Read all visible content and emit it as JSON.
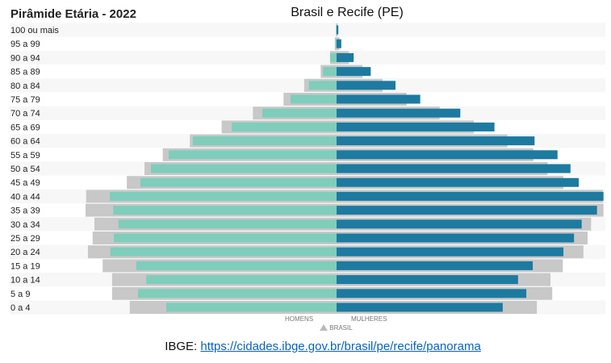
{
  "chart_data": {
    "type": "bar",
    "orientation": "horizontal-population-pyramid",
    "title": "Pirâmide Etária - 2022",
    "subtitle": "Brasil e Recife (PE)",
    "categories": [
      "100 ou mais",
      "95 a 99",
      "90 a 94",
      "85 a 89",
      "80 a 84",
      "75 a 79",
      "70 a 74",
      "65 a 69",
      "60 a 64",
      "55 a 59",
      "50 a 54",
      "45 a 49",
      "40 a 44",
      "35 a 39",
      "30 a 34",
      "25 a 29",
      "20 a 24",
      "15 a 19",
      "10 a 14",
      "5 a 9",
      "0 a 4"
    ],
    "series": [
      {
        "name": "HOMENS",
        "side": "left",
        "color": "#7fcdbb",
        "values": [
          0.01,
          0.02,
          0.11,
          0.23,
          0.47,
          0.78,
          1.26,
          1.78,
          2.44,
          2.85,
          3.15,
          3.33,
          3.85,
          3.79,
          3.7,
          3.78,
          3.84,
          3.4,
          3.23,
          3.37,
          2.89
        ]
      },
      {
        "name": "MULHERES",
        "side": "right",
        "color": "#1d7aa0",
        "values": [
          0.03,
          0.08,
          0.29,
          0.58,
          1.0,
          1.42,
          2.1,
          2.68,
          3.36,
          3.75,
          3.97,
          4.11,
          4.53,
          4.42,
          4.16,
          4.03,
          3.85,
          3.33,
          3.08,
          3.22,
          2.82
        ]
      },
      {
        "name": "BRASIL",
        "sub": "homens",
        "side": "left",
        "color": "#c8c8c8",
        "values": [
          0.01,
          0.03,
          0.11,
          0.27,
          0.55,
          0.9,
          1.42,
          1.95,
          2.49,
          2.95,
          3.26,
          3.56,
          4.25,
          4.26,
          4.11,
          4.14,
          4.22,
          3.97,
          3.81,
          3.81,
          3.51
        ]
      },
      {
        "name": "BRASIL",
        "sub": "mulheres",
        "side": "right",
        "color": "#c8c8c8",
        "values": [
          0.02,
          0.05,
          0.21,
          0.44,
          0.78,
          1.19,
          1.75,
          2.33,
          2.9,
          3.34,
          3.58,
          3.85,
          4.52,
          4.53,
          4.32,
          4.26,
          4.19,
          3.84,
          3.63,
          3.66,
          3.4
        ]
      }
    ],
    "legend": {
      "men_label": "HOMENS",
      "women_label": "MULHERES",
      "reference_label": "BRASIL",
      "placement": "bottom"
    },
    "grid": false,
    "row_band_color": "#f7f7f7"
  },
  "footer": {
    "prefix": "IBGE: ",
    "link": "https://cidades.ibge.gov.br/brasil/pe/recife/panorama"
  }
}
